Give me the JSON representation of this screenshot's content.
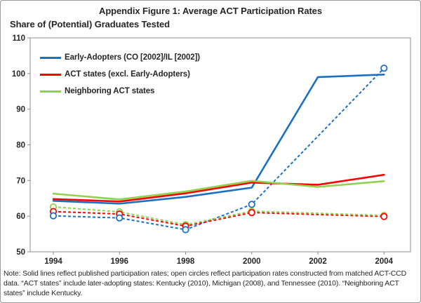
{
  "figure": {
    "title": "Appendix Figure 1: Average ACT Participation Rates",
    "y_axis_header": "Share of (Potential) Graduates Tested",
    "note": "Note: Solid lines reflect published participation rates; open circles reflect participation rates constructed from matched ACT-CCD data. “ACT states” include later-adopting states: Kentucky (2010), Michigan (2008), and Tennessee (2010). “Neighboring ACT states” include Kentucky."
  },
  "legend": [
    {
      "label": "Early-Adopters (CO [2002]/IL [2002])",
      "color": "#1B6FC4"
    },
    {
      "label": "ACT states (excl. Early-Adopters)",
      "color": "#FF0000"
    },
    {
      "label": "Neighboring ACT states",
      "color": "#92D050"
    }
  ],
  "chart_data": {
    "type": "line",
    "title": "Appendix Figure 1: Average ACT Participation Rates",
    "ylabel": "Share of (Potential) Graduates Tested",
    "xlabel": "",
    "ylim": [
      50,
      110
    ],
    "yticks": [
      110,
      100,
      90,
      80,
      70,
      60,
      50
    ],
    "xticks": [
      1994,
      1996,
      1998,
      2000,
      2002,
      2004
    ],
    "grid": false,
    "legend_position": "top-left",
    "colors": {
      "blue": "#1B6FC4",
      "red": "#FF0000",
      "green": "#92D050"
    },
    "series": [
      {
        "name": "Early-Adopters published",
        "color": "#1B6FC4",
        "style": "solid",
        "markers": false,
        "x": [
          1994,
          1996,
          1998,
          2000,
          2002,
          2004
        ],
        "y": [
          64.3,
          63.5,
          65.4,
          68.0,
          99.0,
          99.7
        ]
      },
      {
        "name": "ACT states published",
        "color": "#FF0000",
        "style": "solid",
        "markers": false,
        "x": [
          1994,
          1996,
          1998,
          2000,
          2002,
          2004
        ],
        "y": [
          64.8,
          64.1,
          66.4,
          69.4,
          68.8,
          71.6
        ]
      },
      {
        "name": "Neighboring ACT states published",
        "color": "#92D050",
        "style": "solid",
        "markers": false,
        "x": [
          1994,
          1996,
          1998,
          2000,
          2002,
          2004
        ],
        "y": [
          66.3,
          64.7,
          66.9,
          69.9,
          68.2,
          69.8
        ]
      },
      {
        "name": "Early-Adopters ACT-CCD constructed",
        "color": "#1B6FC4",
        "style": "dashed",
        "markers": true,
        "x": [
          1994,
          1996,
          1998,
          2000,
          2004
        ],
        "y": [
          60.1,
          59.5,
          56.2,
          63.3,
          101.5
        ]
      },
      {
        "name": "ACT states ACT-CCD constructed",
        "color": "#FF0000",
        "style": "dashed",
        "markers": true,
        "x": [
          1994,
          1996,
          1998,
          2000,
          2004
        ],
        "y": [
          61.3,
          60.6,
          57.2,
          61.0,
          59.9
        ]
      },
      {
        "name": "Neighboring ACT states ACT-CCD constructed",
        "color": "#92D050",
        "style": "dashed",
        "markers": true,
        "x": [
          1994,
          1996,
          1998,
          2000,
          2004
        ],
        "y": [
          62.6,
          61.2,
          57.6,
          61.4,
          60.2
        ]
      }
    ]
  }
}
